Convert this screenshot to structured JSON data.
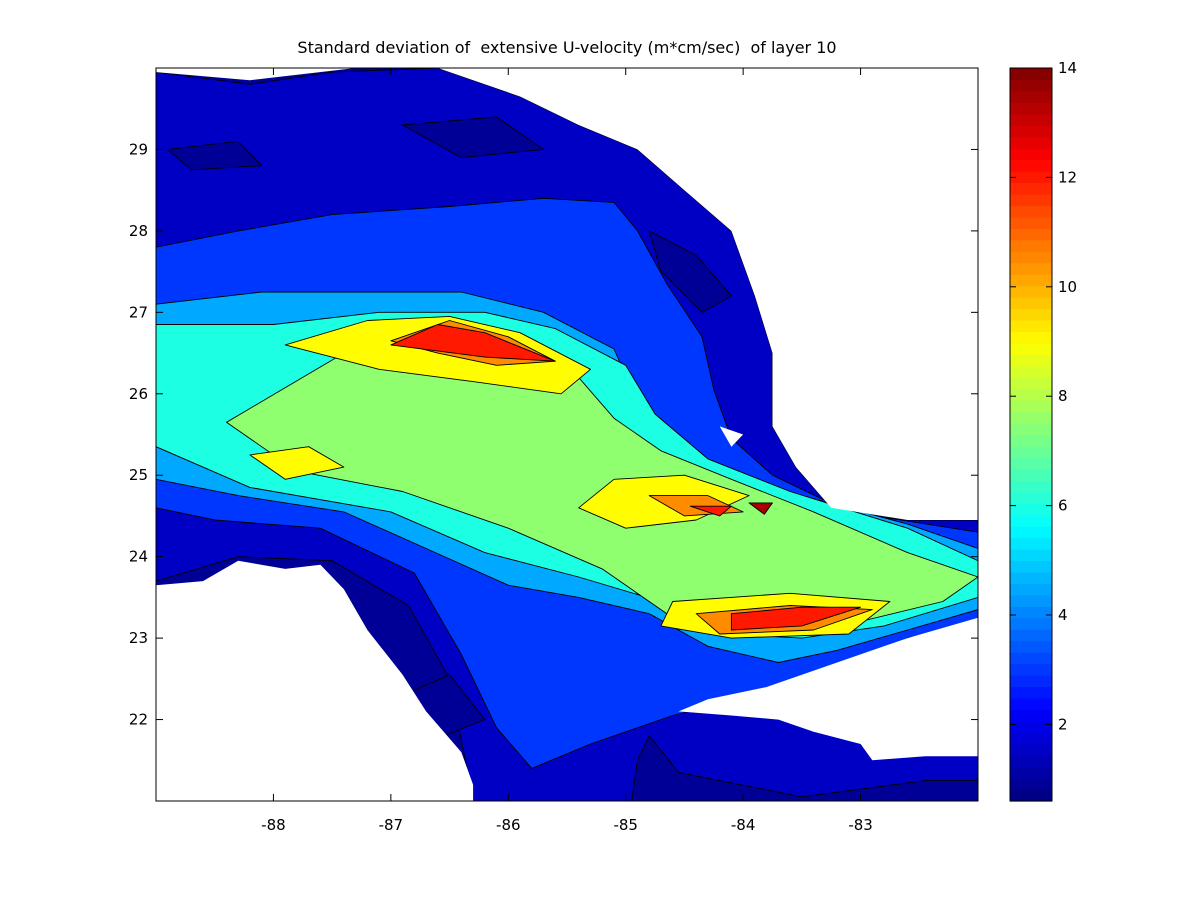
{
  "chart_data": {
    "type": "heatmap",
    "title": "Standard deviation of  extensive U-velocity (m*cm/sec)  of layer 10",
    "xlabel": "",
    "ylabel": "",
    "xlim": [
      -89.0,
      -82.0
    ],
    "ylim": [
      21.0,
      30.0
    ],
    "x_ticks": [
      "-88",
      "-87",
      "-86",
      "-85",
      "-84",
      "-83"
    ],
    "x_tick_values": [
      -88,
      -87,
      -86,
      -85,
      -84,
      -83
    ],
    "y_ticks": [
      "22",
      "23",
      "24",
      "25",
      "26",
      "27",
      "28",
      "29"
    ],
    "y_tick_values": [
      22,
      23,
      24,
      25,
      26,
      27,
      28,
      29
    ],
    "colorbar": {
      "range": [
        0.6,
        14.0
      ],
      "ticks": [
        "2",
        "4",
        "6",
        "8",
        "10",
        "12",
        "14"
      ],
      "tick_values": [
        2,
        4,
        6,
        8,
        10,
        12,
        14
      ],
      "colormap": "jet"
    },
    "colors": {
      "land": "#ffffff",
      "low": "#00008f",
      "high": "#800000"
    },
    "contours": [
      {
        "level": 1.5,
        "points": [
          [
            -89.0,
            21.2
          ],
          [
            -89.0,
            29.95
          ],
          [
            -88.2,
            29.8
          ],
          [
            -87.5,
            29.95
          ],
          [
            -86.6,
            30.0
          ],
          [
            -85.9,
            29.65
          ],
          [
            -85.4,
            29.3
          ],
          [
            -84.9,
            29.0
          ],
          [
            -84.5,
            28.5
          ],
          [
            -84.1,
            28.0
          ],
          [
            -83.9,
            27.2
          ],
          [
            -83.75,
            26.5
          ],
          [
            -83.75,
            25.6
          ],
          [
            -83.55,
            25.1
          ],
          [
            -83.25,
            24.6
          ],
          [
            -82.6,
            24.45
          ],
          [
            -82.0,
            24.45
          ],
          [
            -82.0,
            21.25
          ],
          [
            -82.45,
            21.25
          ],
          [
            -83.5,
            21.05
          ],
          [
            -84.55,
            21.35
          ],
          [
            -84.8,
            21.8
          ],
          [
            -84.9,
            21.5
          ],
          [
            -84.95,
            21.0
          ],
          [
            -86.3,
            21.0
          ],
          [
            -86.5,
            22.5
          ],
          [
            -86.85,
            23.4
          ],
          [
            -87.5,
            23.95
          ],
          [
            -88.3,
            24.0
          ],
          [
            -89.0,
            23.7
          ]
        ]
      },
      {
        "level": 3.0,
        "points": [
          [
            -89.0,
            24.6
          ],
          [
            -89.0,
            27.8
          ],
          [
            -88.3,
            28.0
          ],
          [
            -87.5,
            28.2
          ],
          [
            -86.5,
            28.3
          ],
          [
            -85.7,
            28.4
          ],
          [
            -85.1,
            28.35
          ],
          [
            -84.9,
            28.0
          ],
          [
            -84.65,
            27.35
          ],
          [
            -84.35,
            26.7
          ],
          [
            -84.25,
            26.05
          ],
          [
            -84.1,
            25.45
          ],
          [
            -83.75,
            25.0
          ],
          [
            -83.1,
            24.55
          ],
          [
            -82.0,
            24.3
          ],
          [
            -82.0,
            23.2
          ],
          [
            -82.6,
            23.0
          ],
          [
            -83.2,
            22.6
          ],
          [
            -83.9,
            22.3
          ],
          [
            -84.6,
            22.05
          ],
          [
            -85.3,
            21.7
          ],
          [
            -85.8,
            21.4
          ],
          [
            -86.1,
            21.9
          ],
          [
            -86.4,
            22.8
          ],
          [
            -86.8,
            23.8
          ],
          [
            -87.6,
            24.35
          ],
          [
            -88.5,
            24.45
          ]
        ]
      },
      {
        "level": 4.5,
        "points": [
          [
            -89.0,
            24.95
          ],
          [
            -89.0,
            27.1
          ],
          [
            -88.1,
            27.25
          ],
          [
            -87.0,
            27.25
          ],
          [
            -86.4,
            27.25
          ],
          [
            -85.7,
            27.0
          ],
          [
            -85.1,
            26.55
          ],
          [
            -84.9,
            25.9
          ],
          [
            -84.6,
            25.5
          ],
          [
            -84.2,
            25.05
          ],
          [
            -83.5,
            24.75
          ],
          [
            -82.6,
            24.4
          ],
          [
            -82.0,
            24.1
          ],
          [
            -82.0,
            23.35
          ],
          [
            -82.6,
            23.1
          ],
          [
            -83.2,
            22.85
          ],
          [
            -83.7,
            22.7
          ],
          [
            -84.3,
            22.9
          ],
          [
            -84.8,
            23.3
          ],
          [
            -85.4,
            23.5
          ],
          [
            -86.0,
            23.65
          ],
          [
            -86.7,
            24.1
          ],
          [
            -87.4,
            24.55
          ],
          [
            -88.3,
            24.75
          ]
        ]
      },
      {
        "level": 6.0,
        "points": [
          [
            -89.0,
            25.35
          ],
          [
            -89.0,
            26.85
          ],
          [
            -88.0,
            26.85
          ],
          [
            -87.1,
            27.0
          ],
          [
            -86.2,
            27.0
          ],
          [
            -85.6,
            26.8
          ],
          [
            -85.0,
            26.35
          ],
          [
            -84.75,
            25.75
          ],
          [
            -84.3,
            25.2
          ],
          [
            -83.6,
            24.8
          ],
          [
            -82.6,
            24.35
          ],
          [
            -82.0,
            23.95
          ],
          [
            -82.0,
            23.5
          ],
          [
            -82.8,
            23.15
          ],
          [
            -83.5,
            23.0
          ],
          [
            -84.2,
            23.05
          ],
          [
            -84.7,
            23.45
          ],
          [
            -85.4,
            23.75
          ],
          [
            -86.2,
            24.05
          ],
          [
            -87.0,
            24.55
          ],
          [
            -88.2,
            24.85
          ]
        ]
      },
      {
        "level": 7.5,
        "points": [
          [
            -88.4,
            25.65
          ],
          [
            -87.4,
            26.5
          ],
          [
            -86.6,
            26.65
          ],
          [
            -85.9,
            26.55
          ],
          [
            -85.4,
            26.2
          ],
          [
            -85.1,
            25.7
          ],
          [
            -84.7,
            25.3
          ],
          [
            -84.1,
            24.95
          ],
          [
            -83.4,
            24.55
          ],
          [
            -82.6,
            24.05
          ],
          [
            -82.0,
            23.75
          ],
          [
            -82.3,
            23.45
          ],
          [
            -83.3,
            23.1
          ],
          [
            -84.1,
            23.0
          ],
          [
            -84.6,
            23.25
          ],
          [
            -85.2,
            23.85
          ],
          [
            -86.0,
            24.35
          ],
          [
            -86.9,
            24.8
          ],
          [
            -87.8,
            25.05
          ]
        ]
      },
      {
        "level": 9.0,
        "points": [
          [
            -87.9,
            26.6
          ],
          [
            -87.2,
            26.9
          ],
          [
            -86.5,
            26.95
          ],
          [
            -85.9,
            26.75
          ],
          [
            -85.3,
            26.3
          ],
          [
            -85.55,
            26.0
          ],
          [
            -86.3,
            26.15
          ],
          [
            -87.1,
            26.3
          ]
        ]
      },
      {
        "level": 9.0,
        "points": [
          [
            -85.1,
            24.95
          ],
          [
            -84.5,
            25.0
          ],
          [
            -83.95,
            24.75
          ],
          [
            -84.4,
            24.45
          ],
          [
            -85.0,
            24.35
          ],
          [
            -85.4,
            24.6
          ]
        ]
      },
      {
        "level": 9.0,
        "points": [
          [
            -84.6,
            23.45
          ],
          [
            -83.6,
            23.55
          ],
          [
            -82.75,
            23.45
          ],
          [
            -83.1,
            23.05
          ],
          [
            -84.1,
            23.0
          ],
          [
            -84.7,
            23.15
          ]
        ]
      },
      {
        "level": 9.0,
        "points": [
          [
            -88.2,
            25.25
          ],
          [
            -87.7,
            25.35
          ],
          [
            -87.4,
            25.1
          ],
          [
            -87.9,
            24.95
          ]
        ]
      },
      {
        "level": 10.5,
        "points": [
          [
            -87.0,
            26.65
          ],
          [
            -86.5,
            26.9
          ],
          [
            -86.0,
            26.7
          ],
          [
            -85.6,
            26.4
          ],
          [
            -86.1,
            26.35
          ],
          [
            -86.6,
            26.5
          ]
        ]
      },
      {
        "level": 10.5,
        "points": [
          [
            -84.8,
            24.75
          ],
          [
            -84.3,
            24.75
          ],
          [
            -84.0,
            24.55
          ],
          [
            -84.5,
            24.5
          ]
        ]
      },
      {
        "level": 10.5,
        "points": [
          [
            -84.4,
            23.3
          ],
          [
            -83.6,
            23.4
          ],
          [
            -82.9,
            23.35
          ],
          [
            -83.4,
            23.1
          ],
          [
            -84.2,
            23.05
          ]
        ]
      },
      {
        "level": 12.0,
        "points": [
          [
            -87.0,
            26.6
          ],
          [
            -86.6,
            26.85
          ],
          [
            -86.2,
            26.75
          ],
          [
            -85.6,
            26.4
          ],
          [
            -86.2,
            26.45
          ]
        ]
      },
      {
        "level": 12.0,
        "points": [
          [
            -84.1,
            23.3
          ],
          [
            -83.5,
            23.38
          ],
          [
            -83.0,
            23.38
          ],
          [
            -83.5,
            23.15
          ],
          [
            -84.1,
            23.1
          ]
        ]
      },
      {
        "level": 12.0,
        "points": [
          [
            -84.45,
            24.62
          ],
          [
            -84.1,
            24.62
          ],
          [
            -84.2,
            24.5
          ]
        ]
      },
      {
        "level": 13.5,
        "points": [
          [
            -83.95,
            24.66
          ],
          [
            -83.75,
            24.66
          ],
          [
            -83.82,
            24.52
          ]
        ]
      },
      {
        "level": 0.9,
        "points": [
          [
            -86.9,
            29.3
          ],
          [
            -86.1,
            29.4
          ],
          [
            -85.7,
            29.0
          ],
          [
            -86.4,
            28.9
          ]
        ]
      },
      {
        "level": 0.9,
        "points": [
          [
            -84.8,
            28.0
          ],
          [
            -84.4,
            27.7
          ],
          [
            -84.1,
            27.2
          ],
          [
            -84.35,
            27.0
          ],
          [
            -84.7,
            27.5
          ]
        ]
      },
      {
        "level": 0.9,
        "points": [
          [
            -88.9,
            29.0
          ],
          [
            -88.3,
            29.1
          ],
          [
            -88.1,
            28.8
          ],
          [
            -88.7,
            28.75
          ]
        ]
      },
      {
        "level": 0.9,
        "points": [
          [
            -86.9,
            22.3
          ],
          [
            -86.5,
            22.55
          ],
          [
            -86.2,
            22.0
          ],
          [
            -86.55,
            21.8
          ]
        ]
      }
    ],
    "land_masks": [
      {
        "points": [
          [
            -89.0,
            29.95
          ],
          [
            -89.0,
            30.3
          ],
          [
            -87.1,
            30.3
          ],
          [
            -87.0,
            30.05
          ],
          [
            -87.3,
            30.0
          ],
          [
            -88.2,
            29.85
          ]
        ]
      },
      {
        "points": [
          [
            -86.6,
            30.3
          ],
          [
            -86.6,
            30.0
          ],
          [
            -85.9,
            29.65
          ],
          [
            -85.4,
            29.3
          ],
          [
            -84.9,
            29.0
          ],
          [
            -84.5,
            28.5
          ],
          [
            -84.1,
            28.0
          ],
          [
            -83.9,
            27.2
          ],
          [
            -83.75,
            26.5
          ],
          [
            -83.75,
            25.6
          ],
          [
            -83.55,
            25.1
          ],
          [
            -83.25,
            24.6
          ],
          [
            -82.6,
            24.45
          ],
          [
            -82.0,
            24.45
          ],
          [
            -82.0,
            30.3
          ]
        ]
      },
      {
        "points": [
          [
            -89.0,
            21.0
          ],
          [
            -89.0,
            23.65
          ],
          [
            -88.6,
            23.7
          ],
          [
            -88.3,
            23.95
          ],
          [
            -87.9,
            23.85
          ],
          [
            -87.6,
            23.9
          ],
          [
            -87.4,
            23.6
          ],
          [
            -87.2,
            23.1
          ],
          [
            -86.9,
            22.55
          ],
          [
            -86.7,
            22.1
          ],
          [
            -86.4,
            21.6
          ],
          [
            -86.3,
            21.2
          ],
          [
            -86.3,
            21.0
          ]
        ]
      },
      {
        "points": [
          [
            -84.55,
            22.1
          ],
          [
            -84.3,
            22.25
          ],
          [
            -83.8,
            22.4
          ],
          [
            -83.2,
            22.7
          ],
          [
            -82.6,
            23.0
          ],
          [
            -82.0,
            23.25
          ],
          [
            -82.0,
            21.55
          ],
          [
            -82.45,
            21.55
          ],
          [
            -82.9,
            21.5
          ],
          [
            -83.0,
            21.7
          ],
          [
            -83.4,
            21.85
          ],
          [
            -83.7,
            22.0
          ],
          [
            -84.1,
            22.05
          ]
        ]
      },
      {
        "points": [
          [
            -84.2,
            25.6
          ],
          [
            -84.1,
            25.35
          ],
          [
            -84.0,
            25.5
          ]
        ]
      }
    ]
  }
}
